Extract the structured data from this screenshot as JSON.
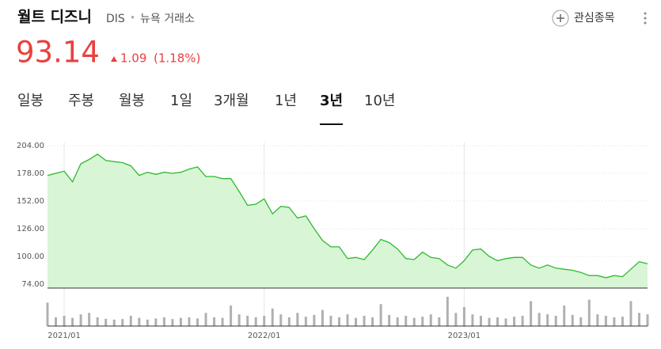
{
  "header": {
    "name": "월트 디즈니",
    "ticker": "DIS",
    "separator": "•",
    "exchange": "뉴욕 거래소",
    "watch": "관심종목",
    "price": "93.14",
    "change": "1.09",
    "change_pct": "(1.18%)"
  },
  "tabs": {
    "items": [
      "일봉",
      "주봉",
      "월봉",
      "1일",
      "3개월",
      "1년",
      "3년",
      "10년"
    ],
    "selected": 6
  },
  "chart_data": {
    "type": "line",
    "color": "#2fb92f",
    "fill": "#d8f5d6",
    "categories": [
      null,
      null,
      "2021/01",
      null,
      null,
      null,
      null,
      null,
      null,
      null,
      null,
      null,
      null,
      null,
      null,
      null,
      null,
      null,
      null,
      null,
      null,
      null,
      null,
      null,
      null,
      null,
      "2022/01",
      null,
      null,
      null,
      null,
      null,
      null,
      null,
      null,
      null,
      null,
      null,
      null,
      null,
      null,
      null,
      null,
      null,
      null,
      null,
      null,
      null,
      null,
      null,
      "2023/01",
      null,
      null,
      null,
      null,
      null,
      null,
      null,
      null,
      null,
      null,
      null,
      null,
      null,
      null,
      null,
      null,
      null,
      null,
      null,
      null,
      null,
      null
    ],
    "values": [
      176,
      178,
      180,
      170,
      187,
      191,
      196,
      190,
      189,
      188,
      185,
      176,
      179,
      177,
      179,
      178,
      179,
      182,
      184,
      175,
      175,
      173,
      173,
      161,
      148,
      149,
      154,
      140,
      147,
      146,
      136,
      138,
      126,
      115,
      109,
      109,
      98,
      99,
      97,
      106,
      116,
      113,
      107,
      98,
      97,
      104,
      99,
      98,
      92,
      89,
      96,
      106,
      107,
      100,
      96,
      98,
      99,
      99,
      92,
      89,
      92,
      89,
      88,
      87,
      85,
      82,
      82,
      80,
      82,
      81,
      88,
      95,
      93.14
    ],
    "ylim": [
      74,
      204
    ],
    "yticks": [
      {
        "value": 204,
        "label": "204.00"
      },
      {
        "value": 178,
        "label": "178.00"
      },
      {
        "value": 152,
        "label": "152.00"
      },
      {
        "value": 126,
        "label": "126.00"
      },
      {
        "value": 100,
        "label": "100.00"
      },
      {
        "value": 74,
        "label": "74.00"
      }
    ],
    "volume": {
      "color": "#b0b0b0",
      "ylim": [
        0,
        100
      ],
      "values": [
        80,
        30,
        35,
        28,
        40,
        45,
        30,
        25,
        22,
        24,
        35,
        28,
        22,
        26,
        30,
        24,
        28,
        30,
        26,
        45,
        30,
        28,
        70,
        40,
        35,
        30,
        35,
        60,
        40,
        30,
        45,
        32,
        38,
        55,
        35,
        30,
        40,
        28,
        35,
        30,
        75,
        38,
        30,
        35,
        28,
        32,
        40,
        30,
        100,
        45,
        65,
        40,
        35,
        28,
        30,
        26,
        32,
        35,
        85,
        45,
        40,
        35,
        70,
        38,
        30,
        90,
        40,
        35,
        30,
        32,
        85,
        45,
        40
      ]
    }
  }
}
